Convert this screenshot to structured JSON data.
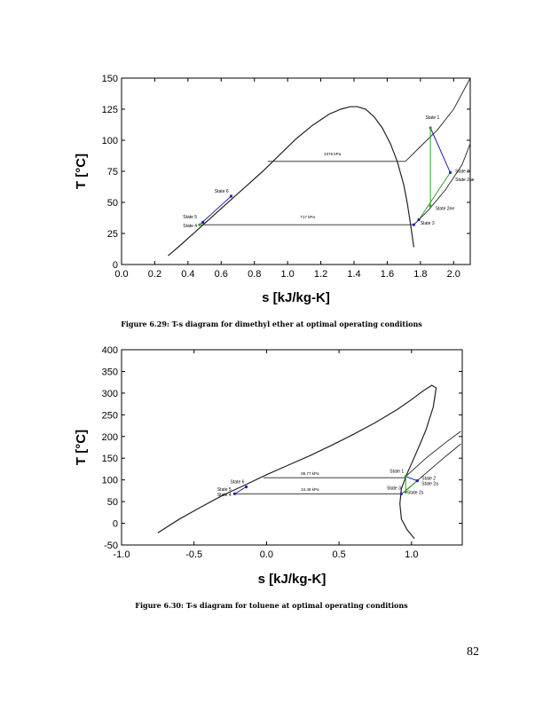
{
  "chart_data": [
    {
      "type": "line",
      "xlabel": "s [kJ/kg-K]",
      "ylabel": "T [°C]",
      "xlim": [
        0.0,
        2.1
      ],
      "ylim": [
        0,
        150
      ],
      "xticks": [
        "0.0",
        "0.2",
        "0.4",
        "0.6",
        "0.8",
        "1.0",
        "1.2",
        "1.4",
        "1.6",
        "1.8",
        "2.0"
      ],
      "yticks": [
        "0",
        "25",
        "50",
        "75",
        "100",
        "125",
        "150"
      ],
      "grid": false,
      "series": [
        {
          "role": "saturation-dome",
          "x": [
            0.28,
            0.35,
            0.45,
            0.55,
            0.65,
            0.75,
            0.85,
            0.95,
            1.05,
            1.15,
            1.25,
            1.32,
            1.38,
            1.42,
            1.47,
            1.52,
            1.57,
            1.62,
            1.66,
            1.7,
            1.72,
            1.74,
            1.76
          ],
          "y": [
            7,
            15,
            27,
            39,
            51,
            63,
            75,
            88,
            101,
            112,
            121,
            125,
            127,
            127,
            125,
            119,
            110,
            97,
            83,
            64,
            50,
            33,
            14
          ]
        },
        {
          "role": "isobar-high-upper",
          "x": [
            1.71,
            1.8,
            1.9,
            2.0,
            2.1
          ],
          "y": [
            83,
            95,
            108,
            125,
            150
          ]
        },
        {
          "role": "isobar-low-upper",
          "x": [
            1.76,
            1.85,
            1.95,
            2.05,
            2.12
          ],
          "y": [
            32,
            44,
            60,
            80,
            104
          ]
        },
        {
          "role": "isobar-high-plateau",
          "x": [
            0.88,
            1.71
          ],
          "y": [
            83,
            83
          ]
        },
        {
          "role": "isobar-low-plateau",
          "x": [
            0.48,
            1.76
          ],
          "y": [
            32,
            32
          ]
        },
        {
          "role": "pump",
          "x": [
            0.47,
            0.66
          ],
          "y": [
            32,
            55
          ]
        },
        {
          "role": "turbine-actual",
          "x": [
            1.86,
            1.98
          ],
          "y": [
            110,
            74
          ]
        },
        {
          "role": "turbine-isentropic",
          "x": [
            1.86,
            1.86
          ],
          "y": [
            110,
            47
          ]
        },
        {
          "role": "regen-line",
          "x": [
            1.79,
            1.98
          ],
          "y": [
            36,
            74
          ]
        }
      ],
      "annotations": [
        {
          "text": "2376 kPa",
          "x": 1.27,
          "y": 88
        },
        {
          "text": "717 kPa",
          "x": 1.12,
          "y": 37
        },
        {
          "text": "State 1",
          "x": 1.83,
          "y": 117
        },
        {
          "text": "State 2",
          "x": 2.01,
          "y": 74
        },
        {
          "text": "State 2ae",
          "x": 2.01,
          "y": 67
        },
        {
          "text": "State 2ee",
          "x": 1.89,
          "y": 44
        },
        {
          "text": "State 3",
          "x": 1.8,
          "y": 32
        },
        {
          "text": "State 4",
          "x": 0.37,
          "y": 30
        },
        {
          "text": "State 5",
          "x": 0.37,
          "y": 37
        },
        {
          "text": "State 6",
          "x": 0.56,
          "y": 58
        }
      ],
      "points": [
        {
          "x": 1.86,
          "y": 110,
          "color": "#2ca02c"
        },
        {
          "x": 1.98,
          "y": 74,
          "color": "#1f1fb4"
        },
        {
          "x": 1.86,
          "y": 47,
          "color": "#2ca02c"
        },
        {
          "x": 1.76,
          "y": 32,
          "color": "#1f1fb4"
        },
        {
          "x": 1.79,
          "y": 36,
          "color": "#1f1fb4"
        },
        {
          "x": 0.47,
          "y": 32,
          "color": "#2ca02c"
        },
        {
          "x": 0.49,
          "y": 34,
          "color": "#1f1fb4"
        },
        {
          "x": 0.66,
          "y": 55,
          "color": "#1f1fb4"
        }
      ]
    },
    {
      "type": "line",
      "xlabel": "s [kJ/kg-K]",
      "ylabel": "T [°C]",
      "xlim": [
        -1.0,
        1.35
      ],
      "ylim": [
        -50,
        400
      ],
      "xticks": [
        "-1.0",
        "-0.5",
        "0.0",
        "0.5",
        "1.0"
      ],
      "yticks": [
        "-50",
        "0",
        "50",
        "100",
        "150",
        "200",
        "250",
        "300",
        "350",
        "400"
      ],
      "grid": false,
      "series": [
        {
          "role": "saturation-dome",
          "x": [
            -0.75,
            -0.6,
            -0.45,
            -0.3,
            -0.15,
            0.0,
            0.15,
            0.3,
            0.45,
            0.6,
            0.75,
            0.9,
            1.0,
            1.08,
            1.14,
            1.17,
            1.15,
            1.1,
            1.03,
            0.97,
            0.93,
            0.92,
            0.93,
            0.97,
            1.02
          ],
          "y": [
            -22,
            10,
            38,
            65,
            88,
            112,
            134,
            156,
            180,
            205,
            232,
            262,
            285,
            305,
            318,
            312,
            268,
            215,
            160,
            115,
            80,
            45,
            10,
            -15,
            -35
          ]
        },
        {
          "role": "isobar-high-upper",
          "x": [
            0.96,
            1.1,
            1.25,
            1.34
          ],
          "y": [
            108,
            150,
            190,
            212
          ]
        },
        {
          "role": "isobar-low-upper",
          "x": [
            0.94,
            1.08,
            1.22,
            1.34
          ],
          "y": [
            70,
            110,
            150,
            183
          ]
        },
        {
          "role": "isobar-high-plateau",
          "x": [
            -0.02,
            0.96
          ],
          "y": [
            105,
            105
          ]
        },
        {
          "role": "isobar-low-plateau",
          "x": [
            -0.23,
            0.93
          ],
          "y": [
            68,
            68
          ]
        },
        {
          "role": "pump",
          "x": [
            -0.22,
            -0.14
          ],
          "y": [
            68,
            84
          ]
        },
        {
          "role": "turbine-actual",
          "x": [
            0.96,
            1.04
          ],
          "y": [
            108,
            98
          ]
        },
        {
          "role": "turbine-isentropic",
          "x": [
            0.96,
            0.96
          ],
          "y": [
            108,
            72
          ]
        },
        {
          "role": "regen-line",
          "x": [
            0.95,
            1.04
          ],
          "y": [
            72,
            98
          ]
        }
      ],
      "annotations": [
        {
          "text": "86.77 kPa",
          "x": 0.3,
          "y": 112
        },
        {
          "text": "24.49 kPa",
          "x": 0.3,
          "y": 75
        },
        {
          "text": "State 1",
          "x": 0.85,
          "y": 117
        },
        {
          "text": "State 2",
          "x": 1.07,
          "y": 100
        },
        {
          "text": "State 2a",
          "x": 1.07,
          "y": 88
        },
        {
          "text": "State 2s",
          "x": 0.97,
          "y": 68
        },
        {
          "text": "State 3",
          "x": 0.83,
          "y": 78
        },
        {
          "text": "State 4",
          "x": -0.34,
          "y": 63
        },
        {
          "text": "State 5",
          "x": -0.34,
          "y": 75
        },
        {
          "text": "State 6",
          "x": -0.25,
          "y": 92
        }
      ],
      "points": [
        {
          "x": 0.96,
          "y": 108,
          "color": "#2ca02c"
        },
        {
          "x": 1.04,
          "y": 98,
          "color": "#1f1fb4"
        },
        {
          "x": 0.96,
          "y": 72,
          "color": "#2ca02c"
        },
        {
          "x": 0.93,
          "y": 68,
          "color": "#1f1fb4"
        },
        {
          "x": -0.22,
          "y": 68,
          "color": "#1f1fb4"
        },
        {
          "x": -0.14,
          "y": 84,
          "color": "#1f1fb4"
        }
      ]
    }
  ],
  "captions": {
    "fig1": "Figure 6.29: T-s diagram for dimethyl ether at optimal operating conditions",
    "fig2": "Figure 6.30: T-s diagram for toluene at optimal operating conditions"
  },
  "page_number": "82"
}
